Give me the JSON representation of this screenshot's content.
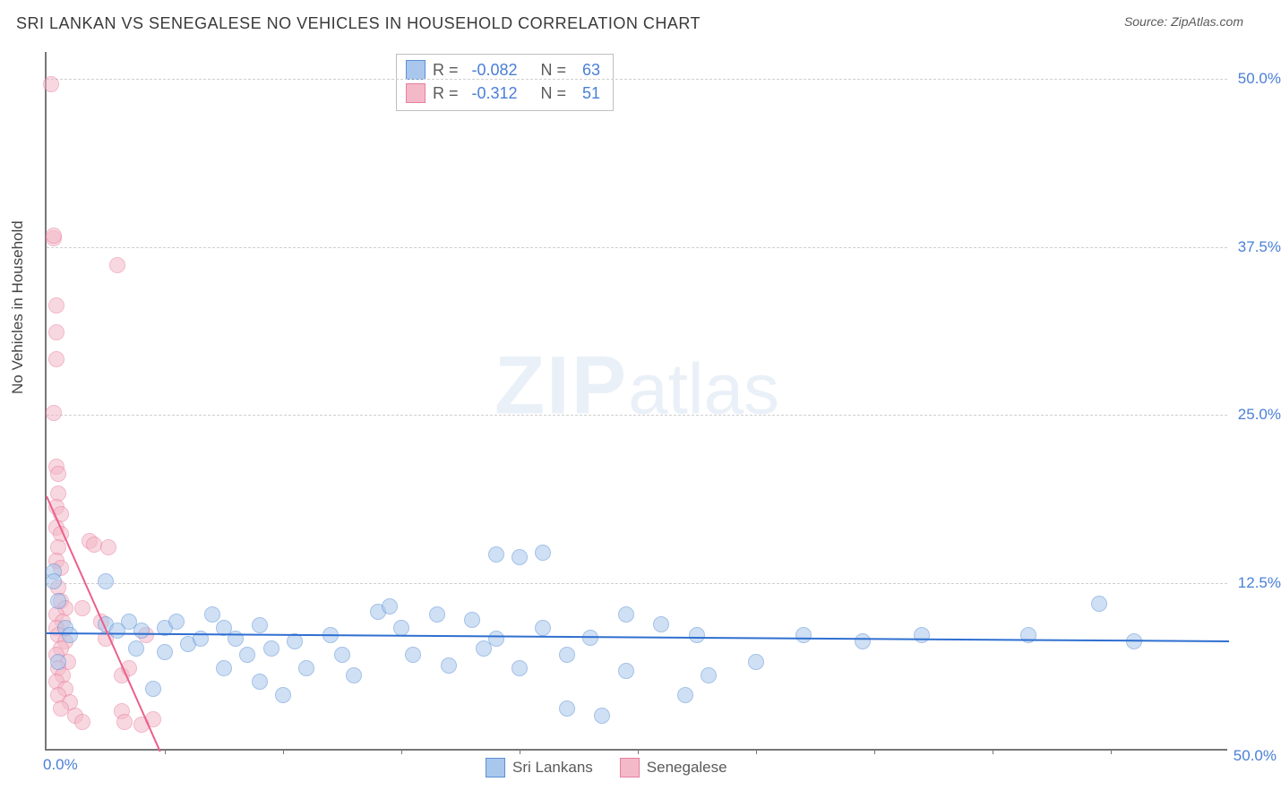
{
  "header": {
    "title": "SRI LANKAN VS SENEGALESE NO VEHICLES IN HOUSEHOLD CORRELATION CHART",
    "source_label": "Source:",
    "source_name": "ZipAtlas.com"
  },
  "watermark": {
    "zip": "ZIP",
    "atlas": "atlas"
  },
  "chart": {
    "type": "scatter",
    "ylabel": "No Vehicles in Household",
    "xlim": [
      0,
      50
    ],
    "ylim": [
      0,
      52
    ],
    "xtick_positions": [
      0,
      5,
      10,
      15,
      20,
      25,
      30,
      35,
      40,
      45
    ],
    "xtick_labels": {
      "0": "0.0%",
      "50": "50.0%"
    },
    "ytick_positions": [
      12.5,
      25.0,
      37.5,
      50.0
    ],
    "ytick_labels": [
      "12.5%",
      "25.0%",
      "37.5%",
      "50.0%"
    ],
    "grid_color": "#cfcfcf",
    "axis_color": "#777777",
    "background_color": "#ffffff",
    "label_color": "#4a7fd6",
    "marker_radius": 9,
    "marker_opacity": 0.55,
    "series": [
      {
        "name": "Sri Lankans",
        "color_fill": "#a9c7ec",
        "color_stroke": "#5b8fd6",
        "R": "-0.082",
        "N": "63",
        "trend": {
          "x1": 0,
          "y1": 8.8,
          "x2": 50,
          "y2": 8.2,
          "color": "#2f6fd0",
          "width": 2.5
        },
        "points": [
          [
            0.3,
            13.2
          ],
          [
            0.3,
            12.5
          ],
          [
            0.5,
            11.0
          ],
          [
            0.5,
            6.5
          ],
          [
            0.8,
            9.0
          ],
          [
            1.0,
            8.5
          ],
          [
            2.5,
            12.5
          ],
          [
            2.5,
            9.3
          ],
          [
            3.0,
            8.8
          ],
          [
            3.5,
            9.5
          ],
          [
            3.8,
            7.5
          ],
          [
            4.0,
            8.8
          ],
          [
            4.5,
            4.5
          ],
          [
            5.0,
            7.2
          ],
          [
            5.0,
            9.0
          ],
          [
            5.5,
            9.5
          ],
          [
            6.0,
            7.8
          ],
          [
            6.5,
            8.2
          ],
          [
            7.0,
            10.0
          ],
          [
            7.5,
            9.0
          ],
          [
            7.5,
            6.0
          ],
          [
            8.0,
            8.2
          ],
          [
            8.5,
            7.0
          ],
          [
            9.0,
            9.2
          ],
          [
            9.0,
            5.0
          ],
          [
            9.5,
            7.5
          ],
          [
            10.0,
            4.0
          ],
          [
            10.5,
            8.0
          ],
          [
            11.0,
            6.0
          ],
          [
            12.0,
            8.5
          ],
          [
            12.5,
            7.0
          ],
          [
            13.0,
            5.5
          ],
          [
            14.0,
            10.2
          ],
          [
            14.5,
            10.6
          ],
          [
            15.0,
            9.0
          ],
          [
            15.5,
            7.0
          ],
          [
            16.5,
            10.0
          ],
          [
            17.0,
            6.2
          ],
          [
            18.0,
            9.6
          ],
          [
            18.5,
            7.5
          ],
          [
            19.0,
            8.2
          ],
          [
            19.0,
            14.5
          ],
          [
            20.0,
            14.3
          ],
          [
            20.0,
            6.0
          ],
          [
            21.0,
            14.6
          ],
          [
            21.0,
            9.0
          ],
          [
            22.0,
            7.0
          ],
          [
            22.0,
            3.0
          ],
          [
            23.0,
            8.3
          ],
          [
            23.5,
            2.5
          ],
          [
            24.5,
            10.0
          ],
          [
            24.5,
            5.8
          ],
          [
            26.0,
            9.3
          ],
          [
            27.0,
            4.0
          ],
          [
            27.5,
            8.5
          ],
          [
            28.0,
            5.5
          ],
          [
            30.0,
            6.5
          ],
          [
            32.0,
            8.5
          ],
          [
            34.5,
            8.0
          ],
          [
            37.0,
            8.5
          ],
          [
            41.5,
            8.5
          ],
          [
            44.5,
            10.8
          ],
          [
            46.0,
            8.0
          ]
        ]
      },
      {
        "name": "Senegalese",
        "color_fill": "#f4b9c8",
        "color_stroke": "#e87ea0",
        "R": "-0.312",
        "N": "51",
        "trend": {
          "x1": 0,
          "y1": 19.0,
          "x2": 4.8,
          "y2": 0,
          "color": "#ec5f8a",
          "width": 2.5
        },
        "points": [
          [
            0.2,
            49.5
          ],
          [
            0.3,
            38.0
          ],
          [
            0.3,
            38.2
          ],
          [
            0.4,
            33.0
          ],
          [
            0.4,
            31.0
          ],
          [
            0.4,
            29.0
          ],
          [
            0.3,
            25.0
          ],
          [
            0.4,
            21.0
          ],
          [
            0.5,
            20.5
          ],
          [
            0.5,
            19.0
          ],
          [
            0.4,
            18.0
          ],
          [
            0.6,
            17.5
          ],
          [
            0.4,
            16.5
          ],
          [
            0.6,
            16.0
          ],
          [
            0.5,
            15.0
          ],
          [
            0.4,
            14.0
          ],
          [
            0.6,
            13.5
          ],
          [
            0.5,
            12.0
          ],
          [
            0.6,
            11.0
          ],
          [
            0.8,
            10.5
          ],
          [
            0.4,
            10.0
          ],
          [
            0.7,
            9.5
          ],
          [
            0.4,
            9.0
          ],
          [
            0.5,
            8.5
          ],
          [
            0.8,
            8.0
          ],
          [
            0.6,
            7.5
          ],
          [
            0.4,
            7.0
          ],
          [
            0.9,
            6.5
          ],
          [
            0.5,
            6.0
          ],
          [
            0.7,
            5.5
          ],
          [
            0.4,
            5.0
          ],
          [
            0.8,
            4.5
          ],
          [
            0.5,
            4.0
          ],
          [
            1.0,
            3.5
          ],
          [
            0.6,
            3.0
          ],
          [
            1.2,
            2.5
          ],
          [
            1.5,
            2.0
          ],
          [
            1.8,
            15.5
          ],
          [
            2.0,
            15.2
          ],
          [
            2.3,
            9.5
          ],
          [
            2.5,
            8.2
          ],
          [
            2.6,
            15.0
          ],
          [
            3.0,
            36.0
          ],
          [
            3.2,
            5.5
          ],
          [
            3.2,
            2.8
          ],
          [
            3.3,
            2.0
          ],
          [
            3.5,
            6.0
          ],
          [
            4.0,
            1.8
          ],
          [
            4.2,
            8.5
          ],
          [
            4.5,
            2.2
          ],
          [
            1.5,
            10.5
          ]
        ]
      }
    ]
  },
  "legend_labels": {
    "R": "R =",
    "N": "N ="
  }
}
